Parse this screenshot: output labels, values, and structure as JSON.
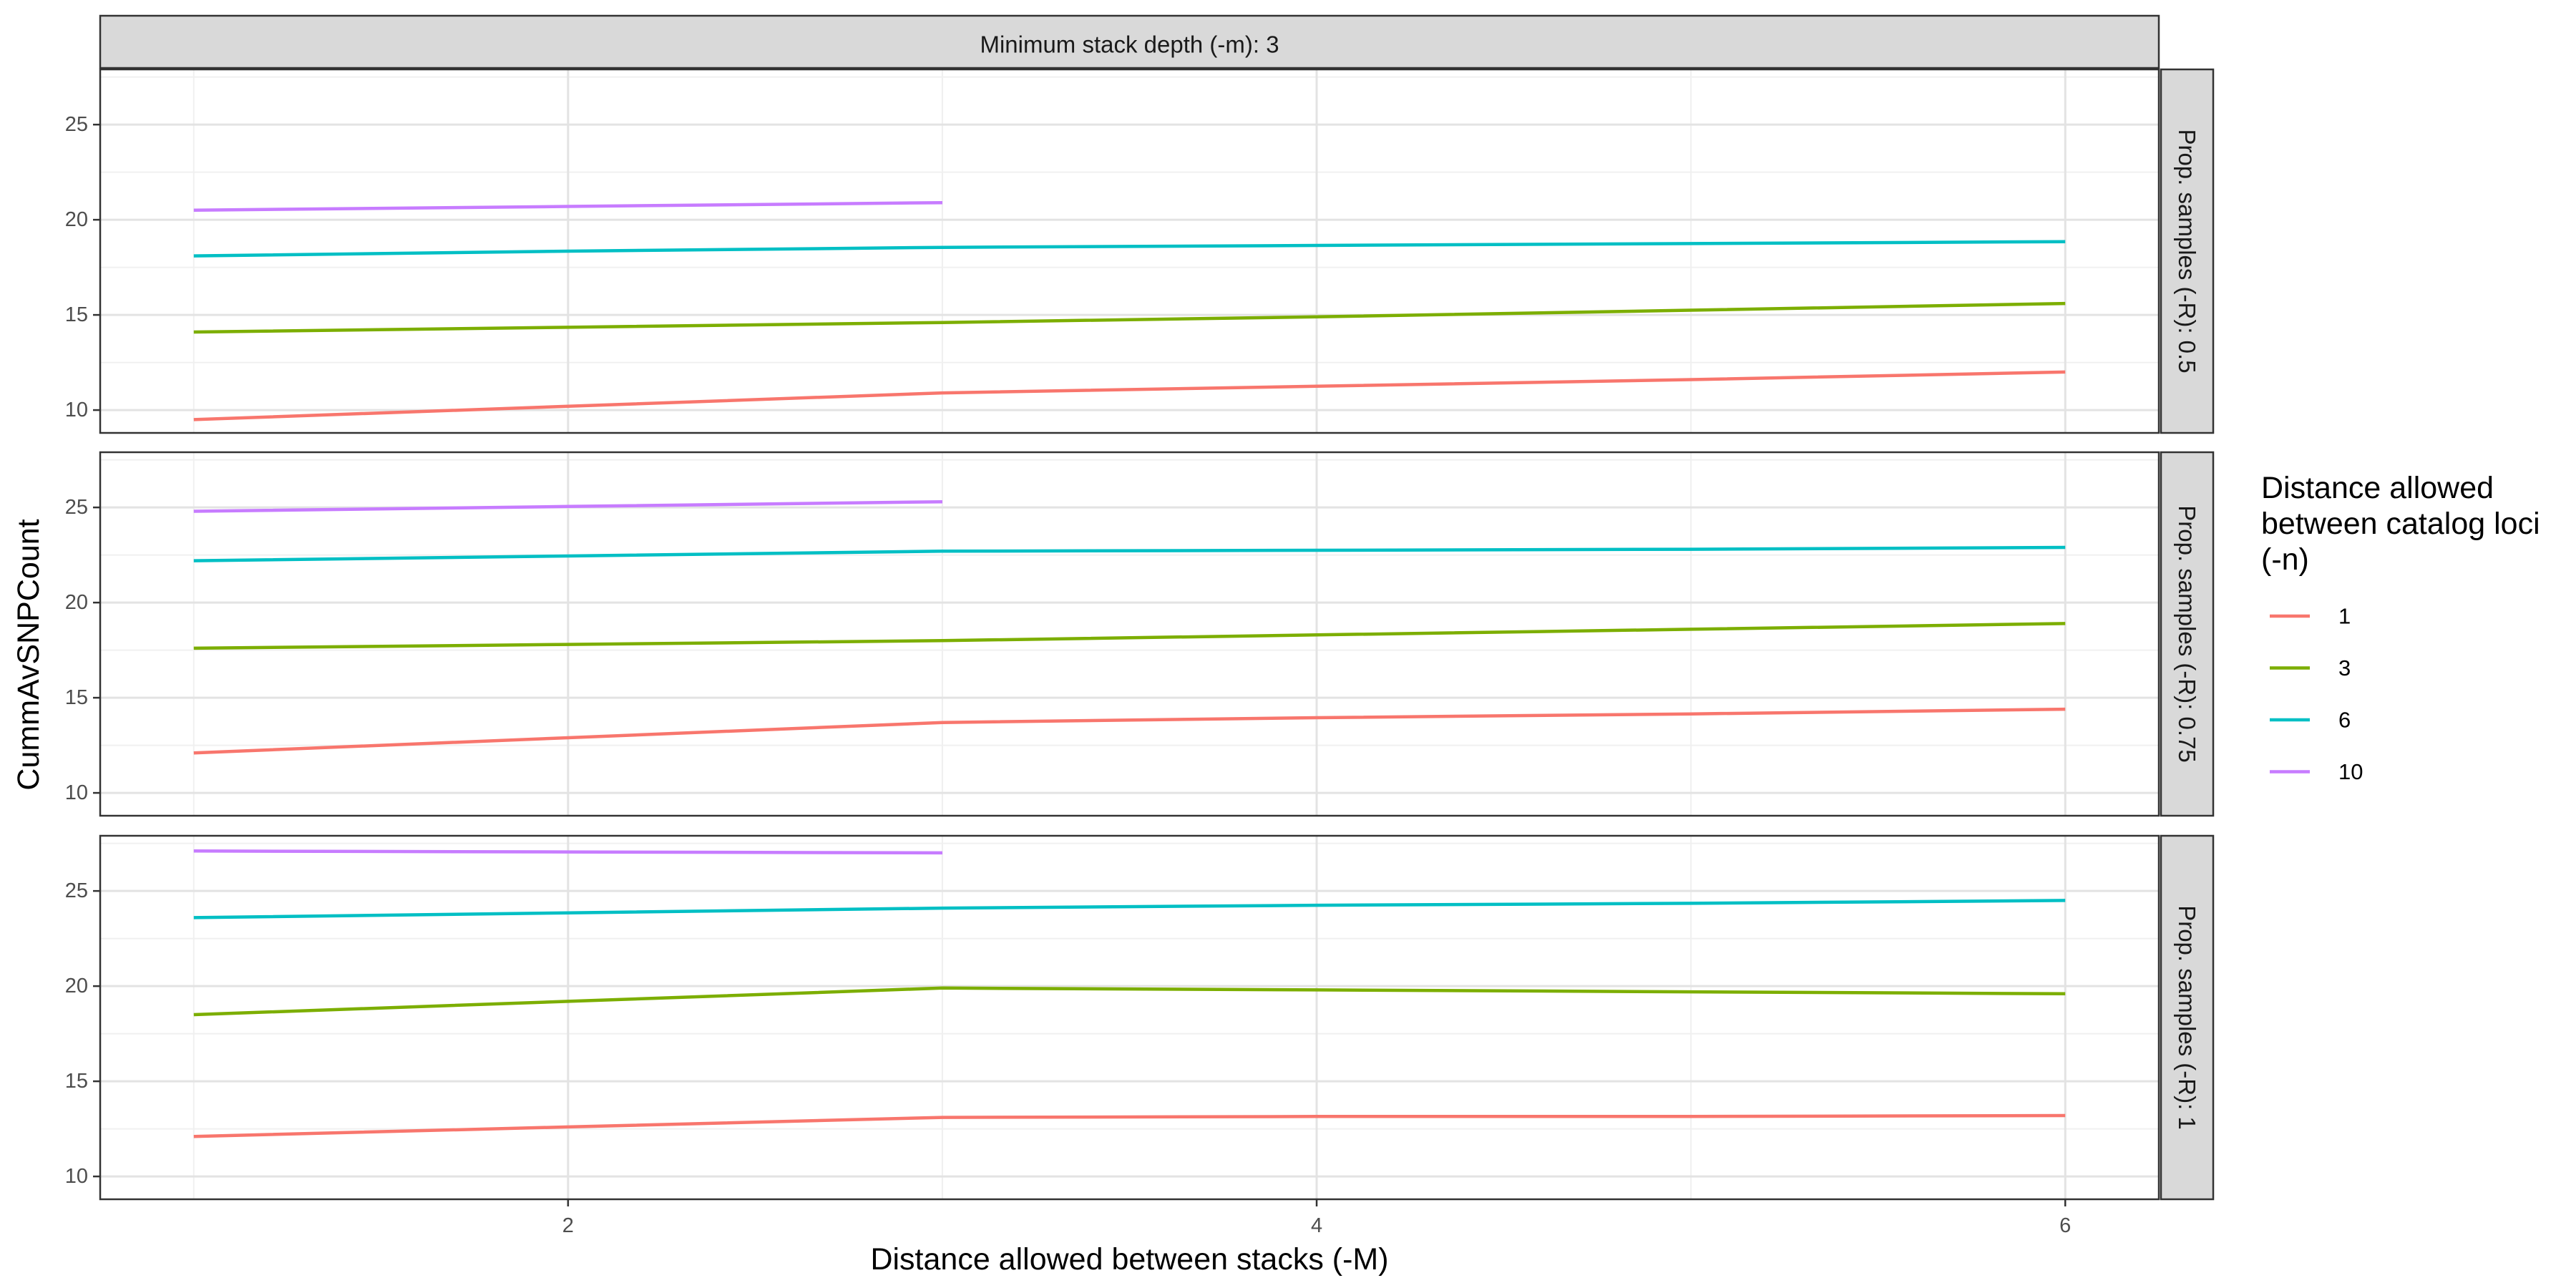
{
  "chart_data": {
    "type": "line",
    "top_strip": "Minimum stack depth (-m): 3",
    "xlabel": "Distance allowed between stacks (-M)",
    "ylabel": "CummAvSNPCount",
    "xlim": [
      0.75,
      6.25
    ],
    "ylim": [
      8.8,
      27.9
    ],
    "x_ticks": [
      2,
      4,
      6
    ],
    "y_ticks": [
      10,
      15,
      20,
      25
    ],
    "grid": true,
    "legend": {
      "title_lines": [
        "Distance allowed",
        "between catalog loci",
        "(-n)"
      ],
      "placement": "right",
      "entries": [
        {
          "label": "1",
          "color": "#F8766D"
        },
        {
          "label": "3",
          "color": "#7CAE00"
        },
        {
          "label": "6",
          "color": "#00BFC4"
        },
        {
          "label": "10",
          "color": "#C77CFF"
        }
      ]
    },
    "panels": [
      {
        "strip": "Prop. samples (-R): 0.5",
        "series": [
          {
            "name": "1",
            "color": "#F8766D",
            "x": [
              1,
              2,
              3,
              4,
              5,
              6
            ],
            "y": [
              9.5,
              10.2,
              10.9,
              11.25,
              11.6,
              12.0
            ]
          },
          {
            "name": "3",
            "color": "#7CAE00",
            "x": [
              1,
              2,
              3,
              4,
              5,
              6
            ],
            "y": [
              14.1,
              14.35,
              14.6,
              14.9,
              15.25,
              15.6
            ]
          },
          {
            "name": "6",
            "color": "#00BFC4",
            "x": [
              1,
              2,
              3,
              4,
              5,
              6
            ],
            "y": [
              18.1,
              18.35,
              18.55,
              18.65,
              18.75,
              18.85
            ]
          },
          {
            "name": "10",
            "color": "#C77CFF",
            "x": [
              1,
              2,
              3
            ],
            "y": [
              20.5,
              20.7,
              20.9
            ]
          }
        ]
      },
      {
        "strip": "Prop. samples (-R): 0.75",
        "series": [
          {
            "name": "1",
            "color": "#F8766D",
            "x": [
              1,
              2,
              3,
              4,
              5,
              6
            ],
            "y": [
              12.1,
              12.9,
              13.7,
              13.95,
              14.15,
              14.4
            ]
          },
          {
            "name": "3",
            "color": "#7CAE00",
            "x": [
              1,
              2,
              3,
              4,
              5,
              6
            ],
            "y": [
              17.6,
              17.8,
              18.0,
              18.3,
              18.6,
              18.9
            ]
          },
          {
            "name": "6",
            "color": "#00BFC4",
            "x": [
              1,
              2,
              3,
              4,
              5,
              6
            ],
            "y": [
              22.2,
              22.45,
              22.7,
              22.75,
              22.8,
              22.9
            ]
          },
          {
            "name": "10",
            "color": "#C77CFF",
            "x": [
              1,
              2,
              3
            ],
            "y": [
              24.8,
              25.05,
              25.3
            ]
          }
        ]
      },
      {
        "strip": "Prop. samples (-R): 1",
        "series": [
          {
            "name": "1",
            "color": "#F8766D",
            "x": [
              1,
              2,
              3,
              4,
              5,
              6
            ],
            "y": [
              12.1,
              12.6,
              13.1,
              13.15,
              13.15,
              13.2
            ]
          },
          {
            "name": "3",
            "color": "#7CAE00",
            "x": [
              1,
              2,
              3,
              4,
              5,
              6
            ],
            "y": [
              18.5,
              19.2,
              19.9,
              19.8,
              19.7,
              19.6
            ]
          },
          {
            "name": "6",
            "color": "#00BFC4",
            "x": [
              1,
              2,
              3,
              4,
              5,
              6
            ],
            "y": [
              23.6,
              23.85,
              24.1,
              24.25,
              24.35,
              24.5
            ]
          },
          {
            "name": "10",
            "color": "#C77CFF",
            "x": [
              1,
              2,
              3
            ],
            "y": [
              27.1,
              27.05,
              27.0
            ]
          }
        ]
      }
    ]
  }
}
